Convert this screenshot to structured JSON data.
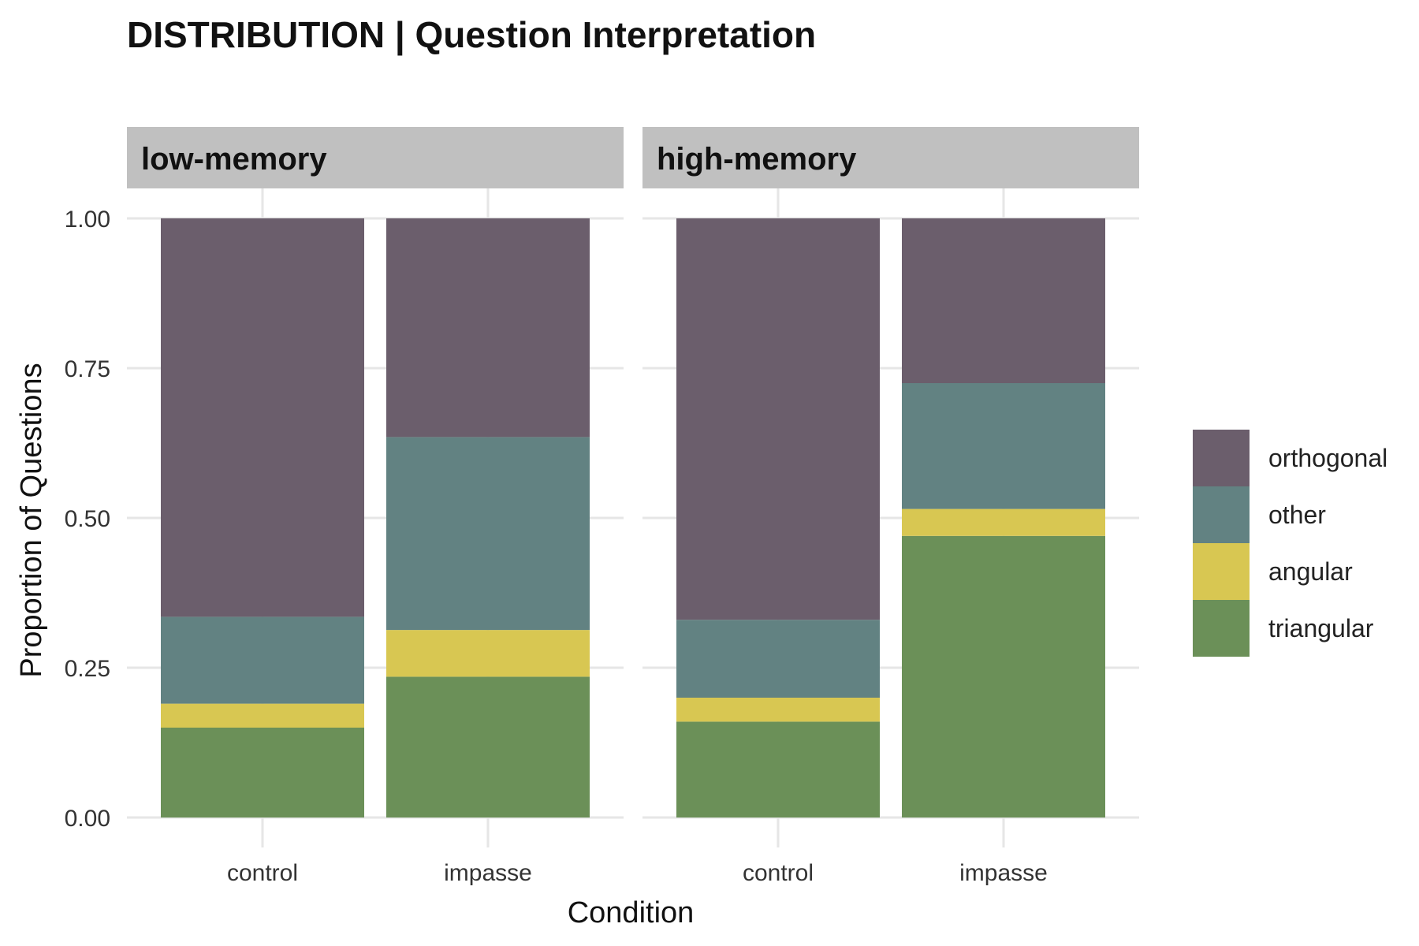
{
  "chart_data": {
    "type": "bar",
    "stacked": true,
    "title": "DISTRIBUTION | Question Interpretation",
    "xlabel": "Condition",
    "ylabel": "Proportion of Questions",
    "ylim": [
      0,
      1
    ],
    "yticks": [
      "0.00",
      "0.25",
      "0.50",
      "0.75",
      "1.00"
    ],
    "grid": true,
    "legend_position": "right",
    "categories": [
      "control",
      "impasse"
    ],
    "series_order_bottom_to_top": [
      "triangular",
      "angular",
      "other",
      "orthogonal"
    ],
    "legend_order": [
      "orthogonal",
      "other",
      "angular",
      "triangular"
    ],
    "colors": {
      "orthogonal": "#6b5e6c",
      "other": "#628282",
      "angular": "#d8c752",
      "triangular": "#6b9058"
    },
    "panels": [
      {
        "label": "low-memory",
        "series": [
          {
            "name": "triangular",
            "values": [
              0.15,
              0.235
            ]
          },
          {
            "name": "angular",
            "values": [
              0.04,
              0.078
            ]
          },
          {
            "name": "other",
            "values": [
              0.145,
              0.322
            ]
          },
          {
            "name": "orthogonal",
            "values": [
              0.665,
              0.365
            ]
          }
        ]
      },
      {
        "label": "high-memory",
        "series": [
          {
            "name": "triangular",
            "values": [
              0.16,
              0.47
            ]
          },
          {
            "name": "angular",
            "values": [
              0.04,
              0.045
            ]
          },
          {
            "name": "other",
            "values": [
              0.13,
              0.21
            ]
          },
          {
            "name": "orthogonal",
            "values": [
              0.67,
              0.275
            ]
          }
        ]
      }
    ]
  }
}
